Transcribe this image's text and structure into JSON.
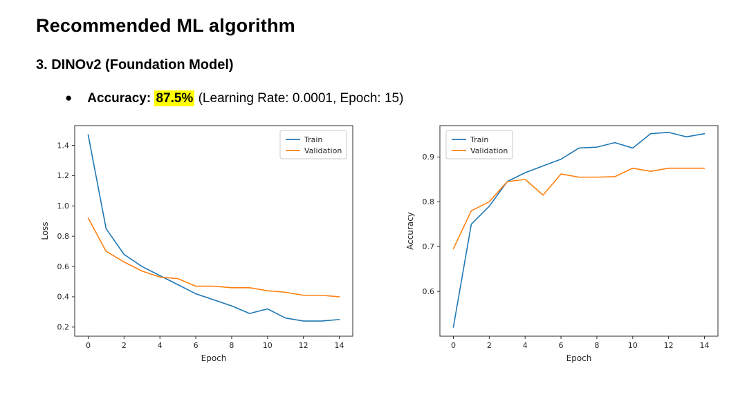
{
  "header": {
    "title": "Recommended ML algorithm",
    "subtitle": "3. DINOv2 (Foundation Model)"
  },
  "bullet": {
    "marker": "●",
    "label": "Accuracy:",
    "value": "87.5%",
    "detail": "(Learning Rate: 0.0001, Epoch: 15)",
    "highlight_color": "#ffff00"
  },
  "chart_data": [
    {
      "type": "line",
      "title": "",
      "xlabel": "Epoch",
      "ylabel": "Loss",
      "xlim": [
        -0.75,
        14.75
      ],
      "ylim": [
        0.14,
        1.53
      ],
      "xticks": [
        0,
        2,
        4,
        6,
        8,
        10,
        12,
        14
      ],
      "yticks": [
        0.2,
        0.4,
        0.6,
        0.8,
        1.0,
        1.2,
        1.4
      ],
      "grid": false,
      "legend_position": "top-right",
      "x": [
        0,
        1,
        2,
        3,
        4,
        5,
        6,
        7,
        8,
        9,
        10,
        11,
        12,
        13,
        14
      ],
      "series": [
        {
          "name": "Train",
          "color": "#1f77b4",
          "values": [
            1.47,
            0.85,
            0.68,
            0.6,
            0.54,
            0.48,
            0.42,
            0.38,
            0.34,
            0.29,
            0.32,
            0.26,
            0.24,
            0.24,
            0.25
          ]
        },
        {
          "name": "Validation",
          "color": "#ff7f0e",
          "values": [
            0.92,
            0.7,
            0.63,
            0.57,
            0.53,
            0.52,
            0.47,
            0.47,
            0.46,
            0.46,
            0.44,
            0.43,
            0.41,
            0.41,
            0.4
          ]
        }
      ]
    },
    {
      "type": "line",
      "title": "",
      "xlabel": "Epoch",
      "ylabel": "Accuracy",
      "xlim": [
        -0.75,
        14.75
      ],
      "ylim": [
        0.5,
        0.97
      ],
      "xticks": [
        0,
        2,
        4,
        6,
        8,
        10,
        12,
        14
      ],
      "yticks": [
        0.6,
        0.7,
        0.8,
        0.9
      ],
      "grid": false,
      "legend_position": "top-left",
      "x": [
        0,
        1,
        2,
        3,
        4,
        5,
        6,
        7,
        8,
        9,
        10,
        11,
        12,
        13,
        14
      ],
      "series": [
        {
          "name": "Train",
          "color": "#1f77b4",
          "values": [
            0.52,
            0.75,
            0.79,
            0.845,
            0.865,
            0.88,
            0.895,
            0.92,
            0.922,
            0.932,
            0.92,
            0.952,
            0.955,
            0.945,
            0.952
          ]
        },
        {
          "name": "Validation",
          "color": "#ff7f0e",
          "values": [
            0.695,
            0.78,
            0.8,
            0.845,
            0.85,
            0.815,
            0.862,
            0.855,
            0.855,
            0.856,
            0.875,
            0.868,
            0.875,
            0.875,
            0.875
          ]
        }
      ]
    }
  ]
}
